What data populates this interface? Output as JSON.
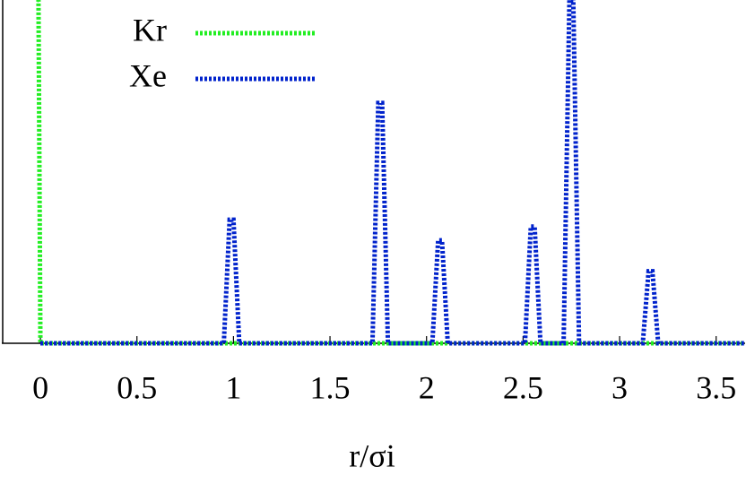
{
  "chart_data": {
    "type": "line",
    "xlabel": "r/σi",
    "xlim": [
      -0.2,
      3.65
    ],
    "xticks": [
      0,
      0.5,
      1,
      1.5,
      2,
      2.5,
      3,
      3.5
    ],
    "ylim": [
      0,
      1
    ],
    "series": [
      {
        "name": "Kr",
        "color": "#22ee22",
        "x": [
          -0.015,
          -0.01,
          0.0,
          3.65
        ],
        "values": [
          1,
          1,
          0,
          0
        ]
      },
      {
        "name": "Xe",
        "color": "#0022cc",
        "x": [
          0,
          0.95,
          0.98,
          1.0,
          1.03,
          1.72,
          1.75,
          1.77,
          1.8,
          2.03,
          2.06,
          2.08,
          2.11,
          2.51,
          2.54,
          2.56,
          2.59,
          2.71,
          2.74,
          2.76,
          2.79,
          3.12,
          3.15,
          3.17,
          3.2,
          3.65
        ],
        "values": [
          0,
          0,
          0.36,
          0.36,
          0,
          0,
          0.7,
          0.7,
          0,
          0,
          0.3,
          0.3,
          0,
          0,
          0.34,
          0.34,
          0,
          0,
          1,
          1,
          0,
          0,
          0.21,
          0.21,
          0,
          0
        ]
      }
    ]
  }
}
